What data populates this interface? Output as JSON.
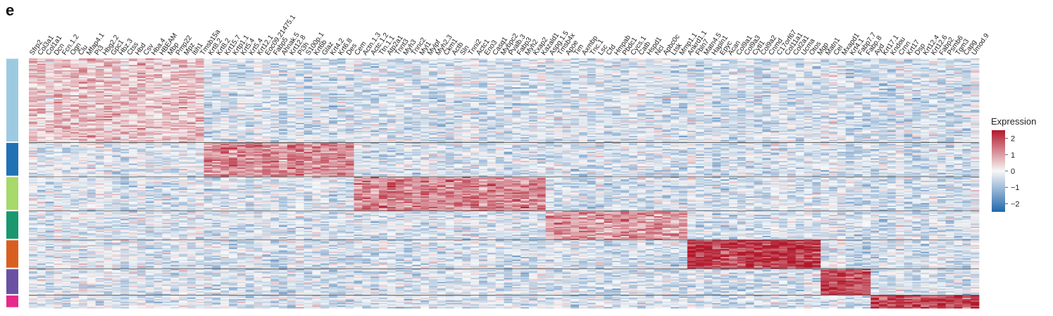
{
  "panel_label": "e",
  "chart_data": {
    "type": "heatmap",
    "genes": [
      "Sfrp2",
      "Col3a1",
      "Col1a1",
      "Dcn",
      "Fcn.1.2",
      "Ogn",
      "Clu",
      "Mfap4.1",
      "Pi3",
      "Hbg2.2",
      "Gpc1",
      "Hbz.3",
      "Ctss",
      "Hbd",
      "Csv",
      "Hba.4",
      "HBEAM",
      "Mbp",
      "Pmp22",
      "Mpz",
      "Itih1",
      "Tmsb15a",
      "Krt8.2",
      "Krt8.2",
      "Krt15.7",
      "Krtp1.1",
      "Krt5.4",
      "Krt5.4",
      "Krt12.1",
      "Eoc09.21475.1",
      "Fabp5",
      "Ahnak.5",
      "Krt12.8",
      "Pi3h",
      "S100p.1",
      "Krt6b",
      "Glaz",
      "Krt4.2",
      "Krt6.8",
      "Des",
      "Cem",
      "Actn.1.3",
      "Actc.1.2",
      "Ttn.1.1",
      "Atp2a1",
      "Tnnt3",
      "Myh3",
      "Tnnc2",
      "Myl1",
      "Mylpf",
      "Myh2.3",
      "Ckm1",
      "Actb",
      "Sln",
      "Tnni2",
      "Actc1",
      "Eno3",
      "Casq1",
      "Mybpc2",
      "Pvalb.3",
      "Fabp3",
      "Myh2",
      "Kxap2",
      "Kazald1",
      "Aspg.1.5",
      "Tmsb4x",
      "Apoe",
      "Tim",
      "Axmbp",
      "Tnc.1",
      "Lsc",
      "Cfd",
      "Hmpab",
      "Pbdc1",
      "Cycs.1",
      "Catb",
      "Hspd1",
      "Ncl",
      "Apbc0c",
      "Ltsk",
      "Mmp1.1",
      "Ankrd1.1",
      "Fbln7",
      "Matn4.5",
      "Hapln1",
      "Epyc",
      "Acan",
      "Col9a1",
      "Col9a3",
      "Cytl1",
      "Col9a2",
      "Cnmd",
      "C17orf67",
      "Col11a1",
      "Col2a1",
      "Ucma",
      "Otos",
      "Mgp",
      "Matn1",
      "Cel",
      "Mxapd1",
      "Krt4.1",
      "Fabp7.7",
      "Fabp.8",
      "Ayd",
      "Krt17.1",
      "Kndou",
      "Crnn",
      "Krt17",
      "Dsp",
      "Krt12.4",
      "Krt12.6",
      "Fabp2",
      "Psmb6",
      "Tgm3",
      "Capg",
      "Umod.9"
    ],
    "clusters": [
      {
        "rows": 64,
        "color": "#9ecae1"
      },
      {
        "rows": 26,
        "color": "#2171b5"
      },
      {
        "rows": 26,
        "color": "#a6d96a"
      },
      {
        "rows": 22,
        "color": "#1a9870"
      },
      {
        "rows": 22,
        "color": "#d95f20"
      },
      {
        "rows": 20,
        "color": "#6a51a3"
      },
      {
        "rows": 10,
        "color": "#e7298a"
      }
    ],
    "column_blocks": [
      {
        "cols": 21,
        "high_cluster": 0,
        "level": 0.55
      },
      {
        "cols": 18,
        "high_cluster": 1,
        "level": 1.2
      },
      {
        "cols": 23,
        "high_cluster": 2,
        "level": 1.3
      },
      {
        "cols": 17,
        "high_cluster": 3,
        "level": 1.05
      },
      {
        "cols": 16,
        "high_cluster": 4,
        "level": 2.2
      },
      {
        "cols": 6,
        "high_cluster": 5,
        "level": 1.9
      },
      {
        "cols": 13,
        "high_cluster": 6,
        "level": 2.0
      }
    ],
    "legend": {
      "title": "Expression",
      "ticks": [
        "2",
        "1",
        "0",
        "−1",
        "−2"
      ],
      "range": [
        -2.5,
        2.5
      ],
      "colors": {
        "high": "#b2182b",
        "mid": "#f7f7f7",
        "low": "#2166ac"
      }
    }
  }
}
